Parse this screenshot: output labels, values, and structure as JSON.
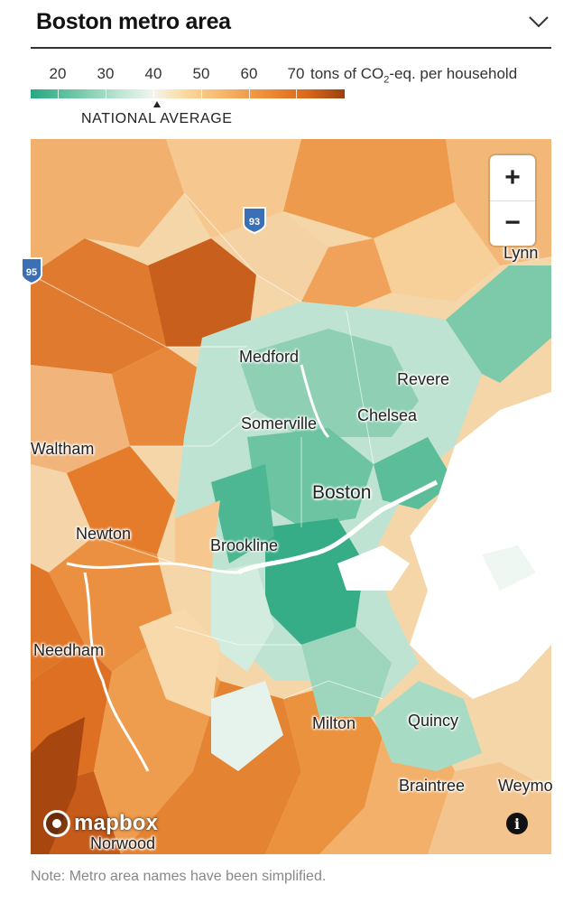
{
  "header": {
    "title": "Boston metro area"
  },
  "legend": {
    "ticks": [
      "20",
      "30",
      "40",
      "50",
      "60",
      "70"
    ],
    "unit_prefix": "tons of CO",
    "unit_subscript": "2",
    "unit_suffix": "-eq. per household",
    "average_label": "NATIONAL AVERAGE",
    "average_value": 41,
    "scale_colors": [
      "#25a883",
      "#6dc7a6",
      "#c6e8d9",
      "#f3f4ee",
      "#fbdca6",
      "#f7b96e",
      "#ec8a34",
      "#d9681b",
      "#9b4110"
    ]
  },
  "map": {
    "cities": {
      "lynn": "Lynn",
      "medford": "Medford",
      "revere": "Revere",
      "somerville": "Somerville",
      "chelsea": "Chelsea",
      "waltham": "Waltham",
      "boston": "Boston",
      "newton": "Newton",
      "brookline": "Brookline",
      "needham": "Needham",
      "milton": "Milton",
      "quincy": "Quincy",
      "braintree": "Braintree",
      "weymouth": "Weymo",
      "norwood": "Norwood"
    },
    "highway_shields": [
      "93",
      "95"
    ],
    "zoom_in_label": "+",
    "zoom_out_label": "−",
    "info_label": "i",
    "attribution": "mapbox"
  },
  "note": "Note: Metro area names have been simplified."
}
